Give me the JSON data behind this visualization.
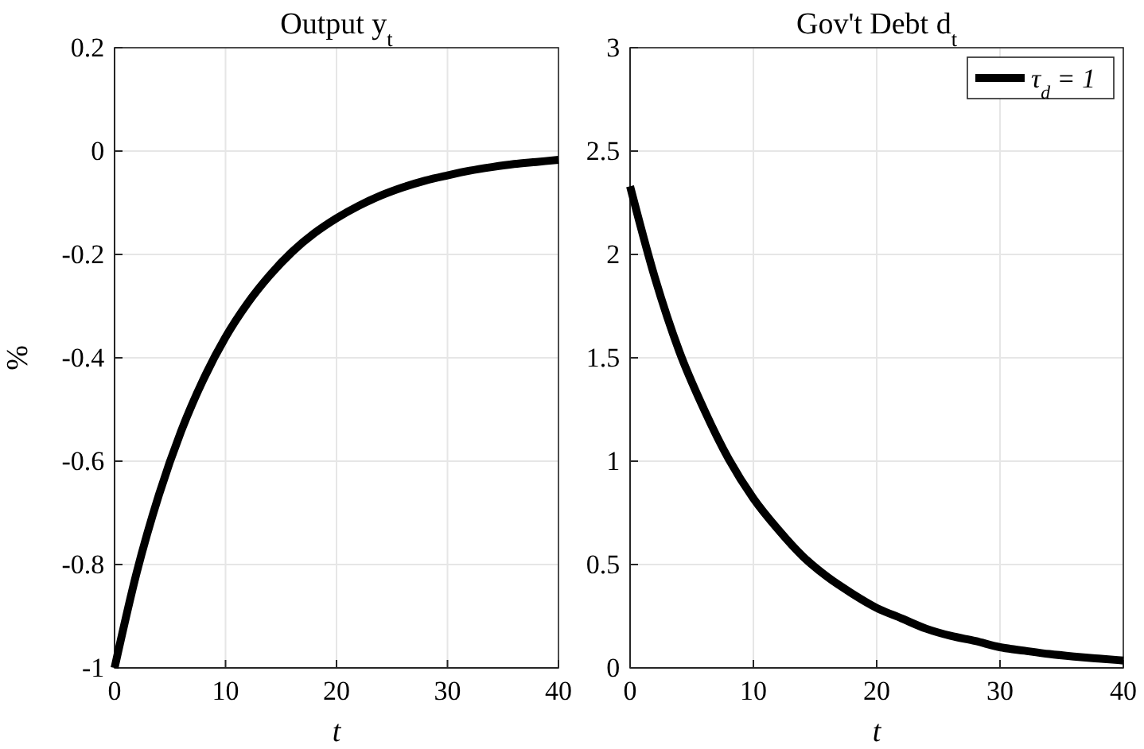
{
  "chart_data": [
    {
      "type": "line",
      "title": "Output y$_{t}$",
      "xlabel": "t",
      "ylabel": "%",
      "x": [
        0,
        2,
        4,
        6,
        8,
        10,
        12,
        14,
        16,
        18,
        20,
        22,
        24,
        26,
        28,
        30,
        32,
        34,
        36,
        38,
        40
      ],
      "xlim": [
        0,
        40
      ],
      "xticks": [
        0,
        10,
        20,
        30,
        40
      ],
      "ylim": [
        -1,
        0.2
      ],
      "yticks": [
        -1,
        -0.8,
        -0.6,
        -0.4,
        -0.2,
        0,
        0.2
      ],
      "grid": true,
      "legend": false,
      "line_style": "solid",
      "series": [
        {
          "color": "#000000",
          "values": [
            -1,
            -0.815,
            -0.665,
            -0.542,
            -0.442,
            -0.36,
            -0.294,
            -0.24,
            -0.195,
            -0.159,
            -0.13,
            -0.106,
            -0.086,
            -0.07,
            -0.057,
            -0.047,
            -0.038,
            -0.031,
            -0.025,
            -0.021,
            -0.017
          ]
        }
      ]
    },
    {
      "type": "line",
      "title": "Gov't Debt d$_{t}$",
      "xlabel": "t",
      "x": [
        0,
        2,
        4,
        6,
        8,
        10,
        12,
        14,
        16,
        18,
        20,
        22,
        24,
        26,
        28,
        30,
        32,
        34,
        36,
        38,
        40
      ],
      "xlim": [
        0,
        40
      ],
      "xticks": [
        0,
        10,
        20,
        30,
        40
      ],
      "ylim": [
        0,
        3
      ],
      "yticks": [
        0,
        0.5,
        1,
        1.5,
        2,
        2.5,
        3
      ],
      "grid": true,
      "legend": "top right",
      "line_style": "solid",
      "series": [
        {
          "name": "τ$_{d}$ = 1",
          "color": "#000000",
          "values": [
            2.33,
            1.89,
            1.53,
            1.25,
            1.01,
            0.82,
            0.67,
            0.54,
            0.44,
            0.36,
            0.29,
            0.24,
            0.19,
            0.155,
            0.13,
            0.1,
            0.083,
            0.067,
            0.055,
            0.045,
            0.036
          ]
        }
      ]
    }
  ]
}
